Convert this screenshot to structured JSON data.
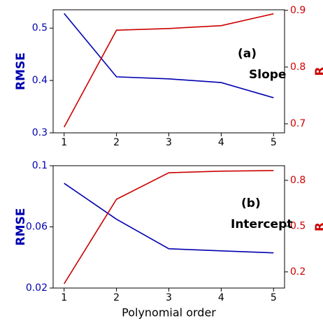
{
  "chart_data": [
    {
      "type": "line",
      "ylabel": "RMSE",
      "y2label": "R",
      "annotations": [
        "(a)",
        "Slope"
      ],
      "x": [
        1,
        2,
        3,
        4,
        5
      ],
      "xlim": [
        0.79,
        5.21
      ],
      "xticks": [
        1,
        2,
        3,
        4,
        5
      ],
      "ylim": [
        0.3,
        0.535
      ],
      "yticks": [
        0.3,
        0.4,
        0.5
      ],
      "y2lim": [
        0.684,
        0.901
      ],
      "y2ticks": [
        0.7,
        0.8,
        0.9
      ],
      "series": [
        {
          "color": "#0000b0",
          "axis": "y",
          "values": [
            0.528,
            0.407,
            0.403,
            0.396,
            0.367
          ]
        },
        {
          "color": "#cc0000",
          "axis": "y2",
          "values": [
            0.694,
            0.865,
            0.868,
            0.873,
            0.894
          ]
        }
      ]
    },
    {
      "type": "line",
      "ylabel": "RMSE",
      "y2label": "R",
      "annotations": [
        "(b)",
        "Intercept"
      ],
      "xlabel": "Polynomial order",
      "x": [
        1,
        2,
        3,
        4,
        5
      ],
      "xlim": [
        0.79,
        5.21
      ],
      "xticks": [
        1,
        2,
        3,
        4,
        5
      ],
      "ylim": [
        0.02,
        0.1
      ],
      "yticks": [
        0.02,
        0.06,
        0.1
      ],
      "y2lim": [
        0.094,
        0.896
      ],
      "y2ticks": [
        0.2,
        0.5,
        0.8
      ],
      "series": [
        {
          "color": "#0000b0",
          "axis": "y",
          "values": [
            0.0885,
            0.065,
            0.0457,
            0.0443,
            0.043
          ]
        },
        {
          "color": "#cc0000",
          "axis": "y2",
          "values": [
            0.122,
            0.676,
            0.85,
            0.86,
            0.864
          ]
        }
      ]
    }
  ]
}
